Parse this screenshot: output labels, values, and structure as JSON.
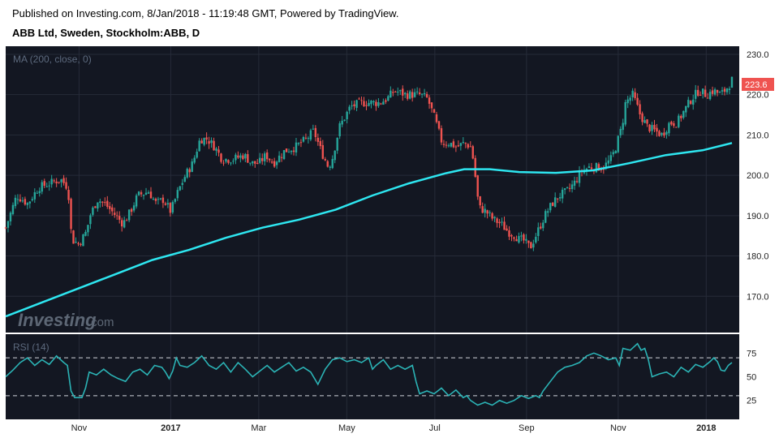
{
  "header": {
    "published": "Published on Investing.com, 8/Jan/2018 - 11:19:48 GMT, Powered by TradingView.",
    "symbol": "ABB Ltd, Sweden, Stockholm:ABB, D"
  },
  "watermark": {
    "brand": "Investing",
    "suffix": ".com"
  },
  "colors": {
    "background": "#131722",
    "up": "#26a69a",
    "down": "#ef5350",
    "ma": "#2ee6f0",
    "rsi": "#2bb3b5",
    "price_tag": "#ef5350"
  },
  "chart_data": [
    {
      "type": "candlestick",
      "title": "",
      "indicator_label": "MA (200, close, 0)",
      "last_price_label": "223.6",
      "ylim": [
        161,
        232
      ],
      "y_ticks": [
        170.0,
        180.0,
        190.0,
        200.0,
        210.0,
        220.0,
        230.0
      ],
      "y_tick_labels": [
        "170.0",
        "180.0",
        "190.0",
        "200.0",
        "210.0",
        "220.0",
        "230.0"
      ],
      "x_tick_labels": [
        "Nov",
        "2017",
        "Mar",
        "May",
        "Jul",
        "Sep",
        "Nov",
        "2018"
      ],
      "x_tick_bold": [
        false,
        true,
        false,
        false,
        false,
        false,
        false,
        true
      ],
      "x_tick_positions": [
        0.1,
        0.225,
        0.345,
        0.465,
        0.585,
        0.71,
        0.835,
        0.955
      ],
      "close_path": [
        [
          0.0,
          187
        ],
        [
          0.015,
          195
        ],
        [
          0.03,
          193
        ],
        [
          0.045,
          197
        ],
        [
          0.06,
          198
        ],
        [
          0.075,
          199
        ],
        [
          0.085,
          197
        ],
        [
          0.09,
          184
        ],
        [
          0.1,
          183
        ],
        [
          0.11,
          186
        ],
        [
          0.115,
          190
        ],
        [
          0.125,
          194
        ],
        [
          0.135,
          193
        ],
        [
          0.15,
          190
        ],
        [
          0.16,
          188
        ],
        [
          0.17,
          191
        ],
        [
          0.18,
          195
        ],
        [
          0.195,
          196
        ],
        [
          0.205,
          193
        ],
        [
          0.215,
          194
        ],
        [
          0.225,
          191
        ],
        [
          0.235,
          196
        ],
        [
          0.245,
          200
        ],
        [
          0.255,
          203
        ],
        [
          0.265,
          209
        ],
        [
          0.275,
          209
        ],
        [
          0.285,
          207
        ],
        [
          0.295,
          204
        ],
        [
          0.31,
          204
        ],
        [
          0.325,
          205
        ],
        [
          0.335,
          203
        ],
        [
          0.345,
          203
        ],
        [
          0.355,
          205
        ],
        [
          0.365,
          203
        ],
        [
          0.38,
          206
        ],
        [
          0.395,
          207
        ],
        [
          0.41,
          209
        ],
        [
          0.42,
          211
        ],
        [
          0.43,
          206
        ],
        [
          0.435,
          204
        ],
        [
          0.44,
          202
        ],
        [
          0.445,
          204
        ],
        [
          0.455,
          212
        ],
        [
          0.47,
          217
        ],
        [
          0.485,
          218
        ],
        [
          0.5,
          218
        ],
        [
          0.51,
          218
        ],
        [
          0.52,
          219
        ],
        [
          0.53,
          221
        ],
        [
          0.545,
          220
        ],
        [
          0.555,
          220
        ],
        [
          0.565,
          220
        ],
        [
          0.575,
          219
        ],
        [
          0.585,
          214
        ],
        [
          0.595,
          208
        ],
        [
          0.605,
          208
        ],
        [
          0.615,
          207
        ],
        [
          0.625,
          208
        ],
        [
          0.635,
          207
        ],
        [
          0.64,
          200
        ],
        [
          0.645,
          192
        ],
        [
          0.655,
          191
        ],
        [
          0.665,
          189
        ],
        [
          0.675,
          188
        ],
        [
          0.685,
          186
        ],
        [
          0.695,
          185
        ],
        [
          0.7,
          184
        ],
        [
          0.705,
          184
        ],
        [
          0.715,
          182
        ],
        [
          0.725,
          186
        ],
        [
          0.735,
          190
        ],
        [
          0.745,
          193
        ],
        [
          0.755,
          195
        ],
        [
          0.765,
          196
        ],
        [
          0.775,
          198
        ],
        [
          0.785,
          201
        ],
        [
          0.795,
          202
        ],
        [
          0.805,
          202
        ],
        [
          0.815,
          202
        ],
        [
          0.825,
          204
        ],
        [
          0.83,
          206
        ],
        [
          0.84,
          212
        ],
        [
          0.845,
          218
        ],
        [
          0.855,
          220
        ],
        [
          0.865,
          215
        ],
        [
          0.875,
          212
        ],
        [
          0.885,
          211
        ],
        [
          0.895,
          210
        ],
        [
          0.905,
          213
        ],
        [
          0.915,
          213
        ],
        [
          0.925,
          216
        ],
        [
          0.935,
          219
        ],
        [
          0.945,
          221
        ],
        [
          0.955,
          220
        ],
        [
          0.965,
          221
        ],
        [
          0.975,
          220
        ],
        [
          0.985,
          222
        ],
        [
          0.99,
          223.6
        ]
      ],
      "series": [
        {
          "name": "MA (200, close, 0)",
          "values": [
            [
              0.0,
              165
            ],
            [
              0.05,
              168.5
            ],
            [
              0.1,
              172
            ],
            [
              0.15,
              175.5
            ],
            [
              0.2,
              179
            ],
            [
              0.25,
              181.5
            ],
            [
              0.3,
              184.5
            ],
            [
              0.35,
              187
            ],
            [
              0.4,
              189
            ],
            [
              0.45,
              191.5
            ],
            [
              0.5,
              195
            ],
            [
              0.55,
              198
            ],
            [
              0.6,
              200.5
            ],
            [
              0.625,
              201.5
            ],
            [
              0.66,
              201.5
            ],
            [
              0.7,
              200.8
            ],
            [
              0.75,
              200.6
            ],
            [
              0.8,
              201.2
            ],
            [
              0.85,
              203
            ],
            [
              0.9,
              205
            ],
            [
              0.95,
              206.2
            ],
            [
              0.99,
              208
            ]
          ]
        }
      ]
    },
    {
      "type": "line",
      "title": "",
      "indicator_label": "RSI (14)",
      "ylim": [
        5,
        95
      ],
      "y_ticks": [
        25,
        50,
        75
      ],
      "y_tick_labels": [
        "25",
        "50",
        "75"
      ],
      "reference_lines": [
        30,
        70
      ],
      "series": [
        {
          "name": "RSI (14)",
          "values": [
            [
              0.0,
              50
            ],
            [
              0.01,
              57
            ],
            [
              0.02,
              65
            ],
            [
              0.03,
              70
            ],
            [
              0.04,
              62
            ],
            [
              0.05,
              68
            ],
            [
              0.06,
              63
            ],
            [
              0.07,
              72
            ],
            [
              0.08,
              65
            ],
            [
              0.085,
              62
            ],
            [
              0.09,
              35
            ],
            [
              0.095,
              28
            ],
            [
              0.105,
              28
            ],
            [
              0.11,
              38
            ],
            [
              0.115,
              55
            ],
            [
              0.125,
              52
            ],
            [
              0.135,
              58
            ],
            [
              0.145,
              52
            ],
            [
              0.155,
              48
            ],
            [
              0.165,
              45
            ],
            [
              0.175,
              55
            ],
            [
              0.185,
              58
            ],
            [
              0.195,
              52
            ],
            [
              0.205,
              62
            ],
            [
              0.215,
              60
            ],
            [
              0.22,
              55
            ],
            [
              0.225,
              48
            ],
            [
              0.23,
              56
            ],
            [
              0.235,
              70
            ],
            [
              0.24,
              62
            ],
            [
              0.25,
              60
            ],
            [
              0.26,
              65
            ],
            [
              0.27,
              72
            ],
            [
              0.28,
              62
            ],
            [
              0.29,
              58
            ],
            [
              0.3,
              65
            ],
            [
              0.31,
              55
            ],
            [
              0.32,
              65
            ],
            [
              0.33,
              58
            ],
            [
              0.34,
              50
            ],
            [
              0.35,
              56
            ],
            [
              0.36,
              62
            ],
            [
              0.37,
              55
            ],
            [
              0.38,
              60
            ],
            [
              0.39,
              65
            ],
            [
              0.4,
              56
            ],
            [
              0.41,
              60
            ],
            [
              0.42,
              55
            ],
            [
              0.43,
              42
            ],
            [
              0.44,
              58
            ],
            [
              0.45,
              68
            ],
            [
              0.46,
              70
            ],
            [
              0.47,
              66
            ],
            [
              0.48,
              68
            ],
            [
              0.49,
              65
            ],
            [
              0.5,
              70
            ],
            [
              0.505,
              58
            ],
            [
              0.51,
              62
            ],
            [
              0.52,
              68
            ],
            [
              0.53,
              58
            ],
            [
              0.54,
              62
            ],
            [
              0.55,
              58
            ],
            [
              0.56,
              62
            ],
            [
              0.565,
              45
            ],
            [
              0.57,
              32
            ],
            [
              0.58,
              35
            ],
            [
              0.59,
              32
            ],
            [
              0.6,
              38
            ],
            [
              0.61,
              30
            ],
            [
              0.62,
              36
            ],
            [
              0.63,
              28
            ],
            [
              0.635,
              30
            ],
            [
              0.64,
              25
            ],
            [
              0.65,
              20
            ],
            [
              0.66,
              23
            ],
            [
              0.67,
              20
            ],
            [
              0.68,
              25
            ],
            [
              0.69,
              22
            ],
            [
              0.7,
              25
            ],
            [
              0.71,
              30
            ],
            [
              0.72,
              27
            ],
            [
              0.73,
              30
            ],
            [
              0.735,
              28
            ],
            [
              0.74,
              35
            ],
            [
              0.75,
              45
            ],
            [
              0.76,
              55
            ],
            [
              0.77,
              60
            ],
            [
              0.78,
              62
            ],
            [
              0.79,
              65
            ],
            [
              0.8,
              72
            ],
            [
              0.81,
              75
            ],
            [
              0.82,
              72
            ],
            [
              0.83,
              68
            ],
            [
              0.84,
              70
            ],
            [
              0.845,
              62
            ],
            [
              0.85,
              80
            ],
            [
              0.86,
              78
            ],
            [
              0.87,
              85
            ],
            [
              0.875,
              78
            ],
            [
              0.88,
              80
            ],
            [
              0.885,
              68
            ],
            [
              0.89,
              50
            ],
            [
              0.9,
              53
            ],
            [
              0.91,
              55
            ],
            [
              0.92,
              50
            ],
            [
              0.93,
              60
            ],
            [
              0.94,
              55
            ],
            [
              0.95,
              63
            ],
            [
              0.96,
              60
            ],
            [
              0.97,
              66
            ],
            [
              0.975,
              70
            ],
            [
              0.98,
              66
            ],
            [
              0.985,
              57
            ],
            [
              0.99,
              56
            ],
            [
              0.995,
              62
            ],
            [
              1.0,
              65
            ]
          ]
        }
      ]
    }
  ]
}
